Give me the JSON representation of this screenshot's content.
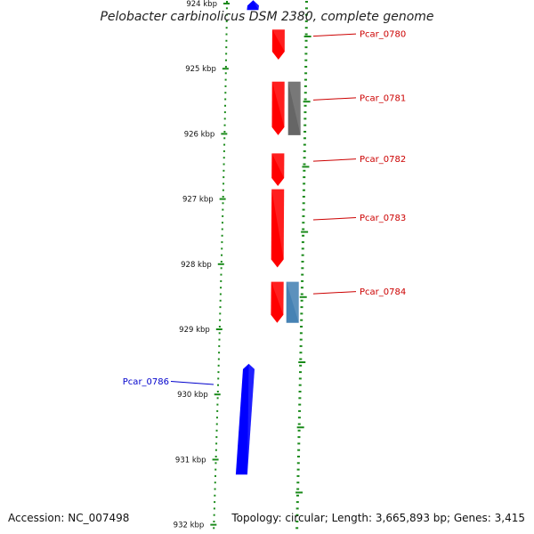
{
  "title": "Pelobacter carbinolicus DSM 2380, complete genome",
  "accession": "Accession: NC_007498",
  "summary": "Topology: circular; Length: 3,665,893 bp; Genes: 3,415",
  "colors": {
    "forward_gene": "#ff0000",
    "reverse_gene": "#0000ff",
    "rna_gray": "#666666",
    "rna_blue": "#4682b4",
    "backbone": "#808080",
    "ticks": "#1a8a1a",
    "forward_label": "#cc0000",
    "reverse_label": "#0000cc"
  },
  "ticks": [
    {
      "label": "924 kbp",
      "kbp": 924
    },
    {
      "label": "925 kbp",
      "kbp": 925
    },
    {
      "label": "926 kbp",
      "kbp": 926
    },
    {
      "label": "927 kbp",
      "kbp": 927
    },
    {
      "label": "928 kbp",
      "kbp": 928
    },
    {
      "label": "929 kbp",
      "kbp": 929
    },
    {
      "label": "930 kbp",
      "kbp": 930
    },
    {
      "label": "931 kbp",
      "kbp": 931
    },
    {
      "label": "932 kbp",
      "kbp": 932
    }
  ],
  "features": [
    {
      "kbp_start": 923.95,
      "kbp_end": 924.1,
      "strand": "reverse",
      "type": "gene",
      "label": ""
    },
    {
      "kbp_start": 924.4,
      "kbp_end": 924.86,
      "strand": "forward",
      "type": "gene",
      "label": "Pcar_0780"
    },
    {
      "kbp_start": 925.2,
      "kbp_end": 926.02,
      "strand": "forward",
      "type": "gene",
      "label": "Pcar_0781"
    },
    {
      "kbp_start": 925.2,
      "kbp_end": 926.02,
      "strand": "forward",
      "type": "rna_gray",
      "label": ""
    },
    {
      "kbp_start": 926.3,
      "kbp_end": 926.8,
      "strand": "forward",
      "type": "gene",
      "label": "Pcar_0782"
    },
    {
      "kbp_start": 926.85,
      "kbp_end": 928.05,
      "strand": "forward",
      "type": "gene",
      "label": "Pcar_0783"
    },
    {
      "kbp_start": 928.27,
      "kbp_end": 928.9,
      "strand": "forward",
      "type": "gene",
      "label": "Pcar_0784"
    },
    {
      "kbp_start": 928.27,
      "kbp_end": 928.9,
      "strand": "forward",
      "type": "rna_blue",
      "label": ""
    },
    {
      "kbp_start": 929.53,
      "kbp_end": 931.23,
      "strand": "reverse",
      "type": "gene",
      "label": "Pcar_0786"
    }
  ]
}
